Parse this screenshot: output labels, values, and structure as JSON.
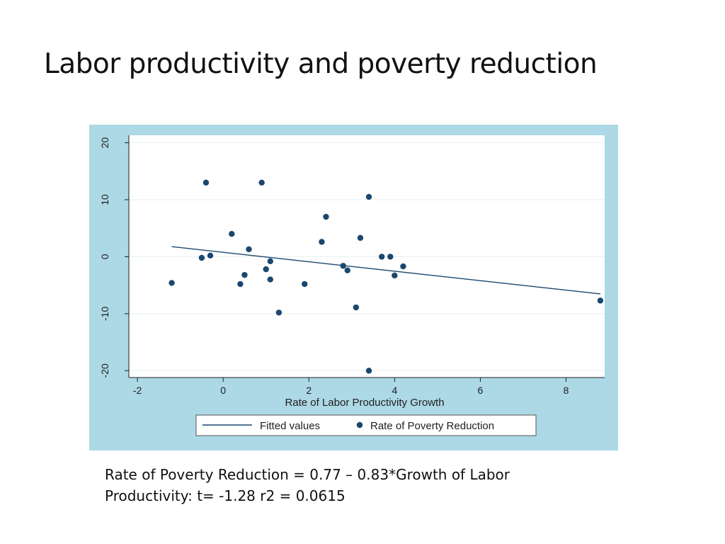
{
  "slide": {
    "title": "Labor productivity and poverty reduction",
    "footnote_line1": "Rate of Poverty Reduction = 0.77 – 0.83*Growth of Labor",
    "footnote_line2": "Productivity:  t= -1.28  r2 = 0.0615"
  },
  "colors": {
    "frame_bg": "#add8e6",
    "plot_bg": "#ffffff",
    "marker": "#1a476f",
    "fit_line": "#1a476f",
    "grid": "#eaf2f3"
  },
  "chart_data": {
    "type": "scatter",
    "title": "",
    "xlabel": "Rate of Labor Productivity Growth",
    "ylabel": "",
    "xlim": [
      -2.2,
      8.9
    ],
    "ylim": [
      -21.2,
      21.3
    ],
    "xticks": [
      -2,
      0,
      2,
      4,
      6,
      8
    ],
    "yticks": [
      -20,
      -10,
      0,
      10,
      20
    ],
    "grid": true,
    "legend_position": "bottom",
    "series": [
      {
        "name": "Fitted values",
        "kind": "line",
        "x": [
          -1.2,
          8.8
        ],
        "y": [
          1.77,
          -6.53
        ]
      },
      {
        "name": "Rate of Poverty Reduction",
        "kind": "scatter",
        "x": [
          -0.4,
          0.9,
          3.4,
          2.4,
          0.2,
          3.2,
          2.3,
          0.6,
          -0.3,
          -0.5,
          3.7,
          3.9,
          1.1,
          2.8,
          4.2,
          1.0,
          2.9,
          0.5,
          4.0,
          1.1,
          -1.2,
          0.4,
          1.9,
          3.1,
          1.3,
          8.8,
          3.4
        ],
        "y": [
          13.0,
          13.0,
          10.5,
          7.0,
          4.0,
          3.3,
          2.6,
          1.3,
          0.2,
          -0.2,
          0.0,
          0.0,
          -0.8,
          -1.6,
          -1.7,
          -2.2,
          -2.4,
          -3.2,
          -3.3,
          -4.0,
          -4.6,
          -4.8,
          -4.8,
          -8.9,
          -9.8,
          -7.7,
          -20.0
        ]
      }
    ]
  }
}
